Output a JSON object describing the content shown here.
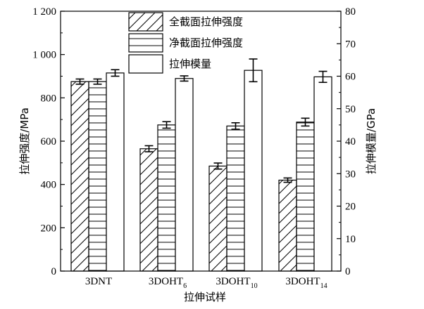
{
  "chart_data": {
    "type": "bar",
    "xlabel": "拉伸试样",
    "ylabel_left": "拉伸强度/MPa",
    "ylabel_right": "拉伸模量/GPa",
    "categories": [
      {
        "base": "3DNT",
        "sub": ""
      },
      {
        "base": "3DOHT",
        "sub": "6"
      },
      {
        "base": "3DOHT",
        "sub": "10"
      },
      {
        "base": "3DOHT",
        "sub": "14"
      }
    ],
    "ylim_left": [
      0,
      1200
    ],
    "ylim_right": [
      0,
      80
    ],
    "yticks_left": [
      "0",
      "200",
      "400",
      "600",
      "800",
      "1 000",
      "1 200"
    ],
    "yticks_left_values": [
      0,
      200,
      400,
      600,
      800,
      1000,
      1200
    ],
    "yticks_right": [
      "0",
      "10",
      "20",
      "30",
      "40",
      "50",
      "60",
      "70",
      "80"
    ],
    "yticks_right_values": [
      0,
      10,
      20,
      30,
      40,
      50,
      60,
      70,
      80
    ],
    "legend_position": "top-center",
    "series": [
      {
        "name": "全截面拉伸强度",
        "axis": "left",
        "pattern": "diagonal",
        "values": [
          875,
          565,
          485,
          420
        ],
        "errors": [
          12,
          14,
          14,
          10
        ]
      },
      {
        "name": "净截面拉伸强度",
        "axis": "left",
        "pattern": "horizontal",
        "values": [
          875,
          675,
          670,
          688
        ],
        "errors": [
          12,
          15,
          15,
          18
        ]
      },
      {
        "name": "拉伸模量",
        "axis": "right",
        "pattern": "plain",
        "values": [
          61,
          59.3,
          61.8,
          59.8
        ],
        "errors": [
          1.0,
          0.8,
          3.5,
          1.7
        ]
      }
    ]
  }
}
